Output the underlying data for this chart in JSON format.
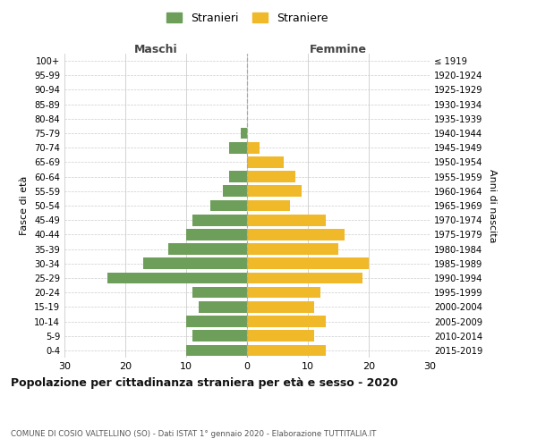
{
  "age_groups": [
    "0-4",
    "5-9",
    "10-14",
    "15-19",
    "20-24",
    "25-29",
    "30-34",
    "35-39",
    "40-44",
    "45-49",
    "50-54",
    "55-59",
    "60-64",
    "65-69",
    "70-74",
    "75-79",
    "80-84",
    "85-89",
    "90-94",
    "95-99",
    "100+"
  ],
  "birth_years": [
    "2015-2019",
    "2010-2014",
    "2005-2009",
    "2000-2004",
    "1995-1999",
    "1990-1994",
    "1985-1989",
    "1980-1984",
    "1975-1979",
    "1970-1974",
    "1965-1969",
    "1960-1964",
    "1955-1959",
    "1950-1954",
    "1945-1949",
    "1940-1944",
    "1935-1939",
    "1930-1934",
    "1925-1929",
    "1920-1924",
    "≤ 1919"
  ],
  "males": [
    10,
    9,
    10,
    8,
    9,
    23,
    17,
    13,
    10,
    9,
    6,
    4,
    3,
    0,
    3,
    1,
    0,
    0,
    0,
    0,
    0
  ],
  "females": [
    13,
    11,
    13,
    11,
    12,
    19,
    20,
    15,
    16,
    13,
    7,
    9,
    8,
    6,
    2,
    0,
    0,
    0,
    0,
    0,
    0
  ],
  "male_color": "#6d9e5a",
  "female_color": "#f0b92a",
  "title": "Popolazione per cittadinanza straniera per età e sesso - 2020",
  "subtitle": "COMUNE DI COSIO VALTELLINO (SO) - Dati ISTAT 1° gennaio 2020 - Elaborazione TUTTITALIA.IT",
  "xlabel_left": "Maschi",
  "xlabel_right": "Femmine",
  "ylabel_left": "Fasce di età",
  "ylabel_right": "Anni di nascita",
  "legend_male": "Stranieri",
  "legend_female": "Straniere",
  "xlim": 30,
  "background_color": "#ffffff",
  "grid_color": "#cccccc"
}
